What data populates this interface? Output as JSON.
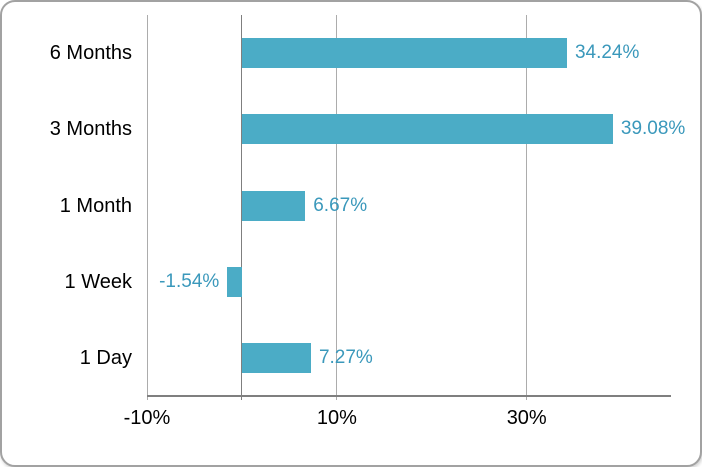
{
  "chart_data": {
    "type": "bar",
    "orientation": "horizontal",
    "title": "",
    "categories": [
      "6 Months",
      "3 Months",
      "1 Month",
      "1 Week",
      "1 Day"
    ],
    "values": [
      34.24,
      39.08,
      6.67,
      -1.54,
      7.27
    ],
    "value_labels": [
      "34.24%",
      "39.08%",
      "6.67%",
      "-1.54%",
      "7.27%"
    ],
    "x_axis": {
      "min": -10,
      "max": 45.2,
      "ticks": [
        -10,
        10,
        30
      ],
      "tick_labels": [
        "-10%",
        "10%",
        "30%"
      ],
      "zero_line": true
    },
    "grid": "vertical",
    "legend": false,
    "colors": {
      "bar": "#4BACC6",
      "value_label": "#3A98BB",
      "gridline": "#ACACAC",
      "axis_line": "#7F7F7F",
      "category_label": "#000000",
      "tick_label": "#000000",
      "background": "#FFFFFF",
      "border": "#A2A2A2"
    }
  }
}
